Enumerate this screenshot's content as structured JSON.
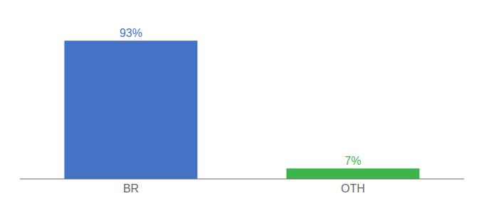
{
  "chart_data": {
    "type": "bar",
    "categories": [
      "BR",
      "OTH"
    ],
    "values": [
      93,
      7
    ],
    "value_labels": [
      "93%",
      "7%"
    ],
    "colors": [
      "#4472c4",
      "#3cb54a"
    ],
    "ylim": [
      0,
      105
    ],
    "data_labels": true,
    "tick_labels": "x",
    "grid": false
  }
}
